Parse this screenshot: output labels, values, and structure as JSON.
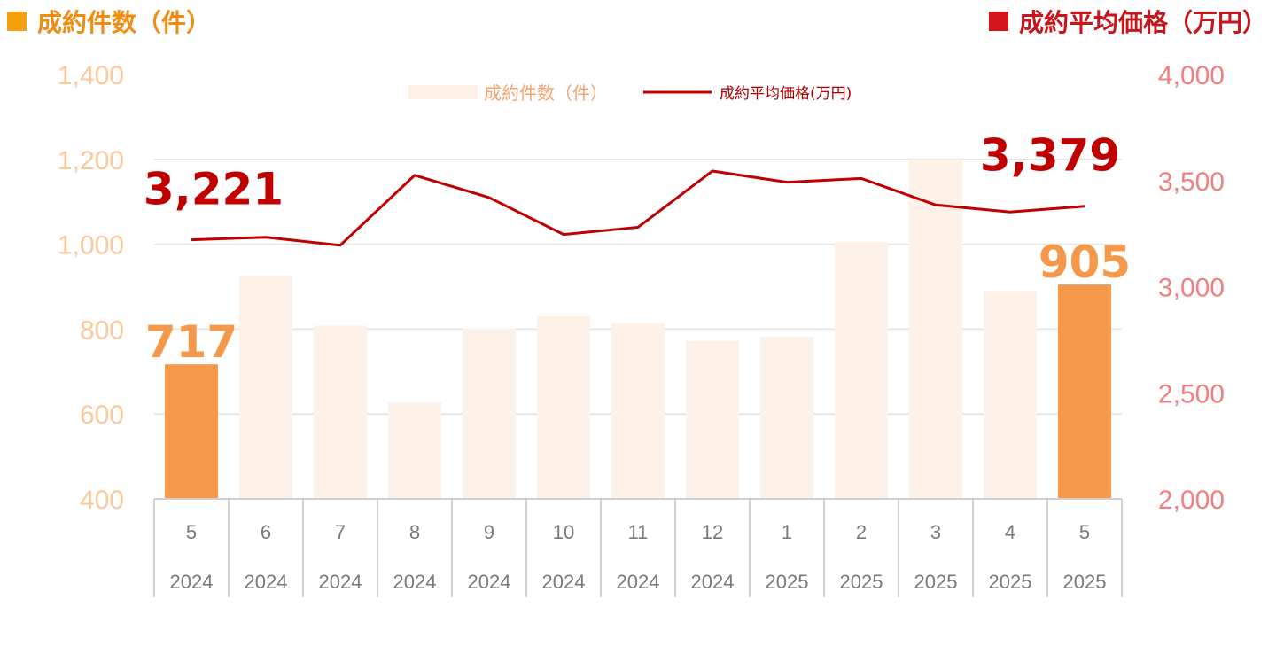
{
  "header": {
    "left_title": "成約件数（件）",
    "right_title": "成約平均価格（万円）"
  },
  "colors": {
    "bar_faded": "#fdf1e8",
    "bar_highlight": "#f5984a",
    "line": "#c00000",
    "left_axis_text": "#f9c99c",
    "right_axis_text": "#f08080",
    "grid": "#e2e2e2"
  },
  "chart_data": {
    "type": "bar",
    "title": "",
    "categories": [
      "5",
      "6",
      "7",
      "8",
      "9",
      "10",
      "11",
      "12",
      "1",
      "2",
      "3",
      "4",
      "5"
    ],
    "years": [
      "2024",
      "2024",
      "2024",
      "2024",
      "2024",
      "2024",
      "2024",
      "2024",
      "2025",
      "2025",
      "2025",
      "2025",
      "2025"
    ],
    "series": [
      {
        "name": "成約件数（件）",
        "type": "bar",
        "axis": "left",
        "values": [
          717,
          926,
          808,
          627,
          802,
          830,
          814,
          772,
          782,
          1005,
          1200,
          890,
          905
        ],
        "highlighted": [
          true,
          false,
          false,
          false,
          false,
          false,
          false,
          false,
          false,
          false,
          false,
          false,
          true
        ]
      },
      {
        "name": "成約平均価格(万円)",
        "type": "line",
        "axis": "right",
        "values": [
          3221,
          3233,
          3195,
          3525,
          3420,
          3246,
          3280,
          3545,
          3492,
          3510,
          3385,
          3352,
          3379
        ]
      }
    ],
    "left_axis": {
      "ylim": [
        400,
        1400
      ],
      "ticks": [
        "400",
        "600",
        "800",
        "1,000",
        "1,200",
        "1,400"
      ]
    },
    "right_axis": {
      "ylim": [
        2000,
        4000
      ],
      "ticks": [
        "2,000",
        "2,500",
        "3,000",
        "3,500",
        "4,000"
      ]
    },
    "data_labels": [
      {
        "series": "bar",
        "index": 0,
        "text": "717"
      },
      {
        "series": "bar",
        "index": 12,
        "text": "905"
      },
      {
        "series": "line",
        "index": 0,
        "text": "3,221"
      },
      {
        "series": "line",
        "index": 12,
        "text": "3,379"
      }
    ],
    "legend": {
      "position": "top-center",
      "items": [
        "成約件数（件）",
        "成約平均価格(万円)"
      ]
    },
    "grid": true
  }
}
